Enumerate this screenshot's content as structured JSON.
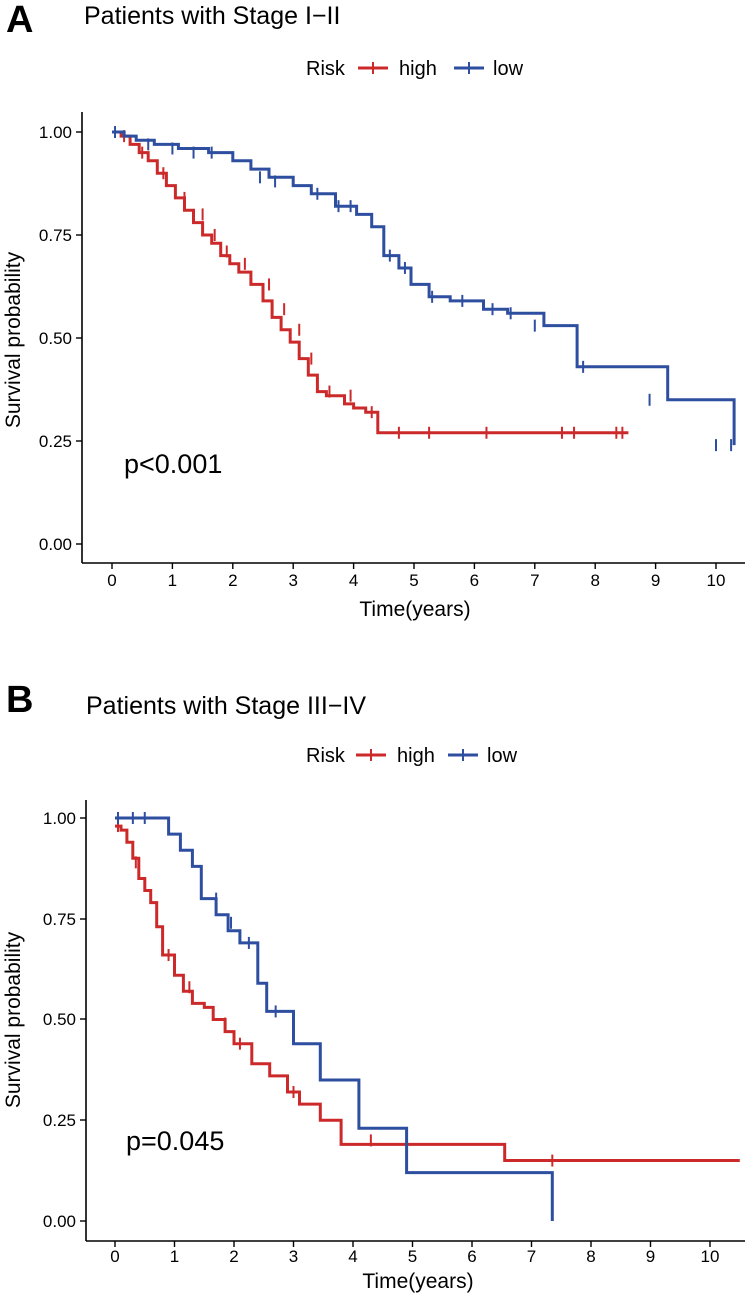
{
  "chart_data": [
    {
      "panel_label": "A",
      "type": "line",
      "title": "Patients with Stage I−II",
      "xlabel": "Time(years)",
      "ylabel": "Survival probability",
      "xlim": [
        0,
        10.5
      ],
      "ylim": [
        0,
        1.0
      ],
      "xticks": [
        0,
        1,
        2,
        3,
        4,
        5,
        6,
        7,
        8,
        9,
        10
      ],
      "yticks": [
        "0.00",
        "0.25",
        "0.50",
        "0.75",
        "1.00"
      ],
      "legend": {
        "title": "Risk",
        "position": "top",
        "entries": [
          "high",
          "low"
        ]
      },
      "annotation": "p<0.001",
      "grid": false,
      "series": [
        {
          "name": "high",
          "color": "#cc2a2a",
          "x": [
            0,
            0.15,
            0.3,
            0.45,
            0.6,
            0.75,
            0.9,
            1.05,
            1.2,
            1.35,
            1.5,
            1.65,
            1.8,
            1.95,
            2.1,
            2.3,
            2.5,
            2.65,
            2.8,
            2.95,
            3.1,
            3.25,
            3.4,
            3.55,
            3.7,
            3.85,
            4.0,
            4.2,
            4.4,
            8.55
          ],
          "y": [
            1.0,
            0.99,
            0.97,
            0.95,
            0.93,
            0.9,
            0.87,
            0.84,
            0.81,
            0.78,
            0.75,
            0.73,
            0.7,
            0.68,
            0.66,
            0.63,
            0.59,
            0.55,
            0.52,
            0.49,
            0.45,
            0.41,
            0.37,
            0.36,
            0.36,
            0.34,
            0.33,
            0.32,
            0.27,
            0.27
          ],
          "censored": [
            [
              0.2,
              0.99
            ],
            [
              0.5,
              0.95
            ],
            [
              0.85,
              0.9
            ],
            [
              1.2,
              0.84
            ],
            [
              1.5,
              0.8
            ],
            [
              1.7,
              0.75
            ],
            [
              1.9,
              0.71
            ],
            [
              2.2,
              0.68
            ],
            [
              2.6,
              0.63
            ],
            [
              2.85,
              0.57
            ],
            [
              3.1,
              0.52
            ],
            [
              3.3,
              0.45
            ],
            [
              3.6,
              0.37
            ],
            [
              3.95,
              0.36
            ],
            [
              4.3,
              0.32
            ],
            [
              4.75,
              0.27
            ],
            [
              5.25,
              0.27
            ],
            [
              6.2,
              0.27
            ],
            [
              7.45,
              0.27
            ],
            [
              7.65,
              0.27
            ],
            [
              8.35,
              0.27
            ],
            [
              8.45,
              0.27
            ]
          ]
        },
        {
          "name": "low",
          "color": "#2e4ea0",
          "x": [
            0,
            0.2,
            0.4,
            0.7,
            1.1,
            1.6,
            2.0,
            2.3,
            2.6,
            3.0,
            3.3,
            3.7,
            4.05,
            4.3,
            4.5,
            4.75,
            4.95,
            5.25,
            5.6,
            6.15,
            6.55,
            7.15,
            7.7,
            8.45,
            8.65,
            9.2,
            10.3
          ],
          "y": [
            1.0,
            0.99,
            0.98,
            0.97,
            0.96,
            0.95,
            0.93,
            0.91,
            0.89,
            0.87,
            0.85,
            0.82,
            0.8,
            0.77,
            0.7,
            0.67,
            0.63,
            0.6,
            0.59,
            0.57,
            0.56,
            0.53,
            0.43,
            0.43,
            0.43,
            0.35,
            0.24
          ],
          "censored": [
            [
              0.05,
              1.0
            ],
            [
              0.6,
              0.97
            ],
            [
              1.0,
              0.96
            ],
            [
              1.35,
              0.95
            ],
            [
              1.65,
              0.95
            ],
            [
              2.45,
              0.89
            ],
            [
              2.7,
              0.88
            ],
            [
              3.4,
              0.85
            ],
            [
              3.75,
              0.82
            ],
            [
              3.95,
              0.82
            ],
            [
              4.6,
              0.7
            ],
            [
              4.85,
              0.67
            ],
            [
              5.3,
              0.6
            ],
            [
              5.8,
              0.59
            ],
            [
              6.3,
              0.57
            ],
            [
              6.6,
              0.56
            ],
            [
              7.0,
              0.53
            ],
            [
              7.8,
              0.43
            ],
            [
              8.9,
              0.35
            ],
            [
              10.0,
              0.24
            ],
            [
              10.25,
              0.24
            ]
          ]
        }
      ]
    },
    {
      "panel_label": "B",
      "type": "line",
      "title": "Patients with Stage III−IV",
      "xlabel": "Time(years)",
      "ylabel": "Survival probability",
      "xlim": [
        0,
        10.5
      ],
      "ylim": [
        0,
        1.0
      ],
      "xticks": [
        0,
        1,
        2,
        3,
        4,
        5,
        6,
        7,
        8,
        9,
        10
      ],
      "yticks": [
        "0.00",
        "0.25",
        "0.50",
        "0.75",
        "1.00"
      ],
      "legend": {
        "title": "Risk",
        "position": "top",
        "entries": [
          "high",
          "low"
        ]
      },
      "annotation": "p=0.045",
      "grid": false,
      "series": [
        {
          "name": "high",
          "color": "#cc2a2a",
          "x": [
            0,
            0.1,
            0.2,
            0.3,
            0.4,
            0.5,
            0.6,
            0.7,
            0.8,
            1.0,
            1.15,
            1.3,
            1.5,
            1.65,
            1.85,
            2.0,
            2.3,
            2.6,
            2.9,
            3.1,
            3.45,
            3.8,
            4.1,
            4.9,
            6.55,
            10.5
          ],
          "y": [
            0.98,
            0.97,
            0.94,
            0.9,
            0.85,
            0.82,
            0.79,
            0.73,
            0.66,
            0.61,
            0.57,
            0.54,
            0.53,
            0.5,
            0.47,
            0.44,
            0.39,
            0.36,
            0.32,
            0.29,
            0.25,
            0.19,
            0.19,
            0.19,
            0.15,
            0.15
          ],
          "censored": [
            [
              0.05,
              0.98
            ],
            [
              0.35,
              0.89
            ],
            [
              0.9,
              0.66
            ],
            [
              1.25,
              0.58
            ],
            [
              1.85,
              0.49
            ],
            [
              2.1,
              0.44
            ],
            [
              3.0,
              0.32
            ],
            [
              4.3,
              0.2
            ],
            [
              7.35,
              0.15
            ]
          ]
        },
        {
          "name": "low",
          "color": "#2e4ea0",
          "x": [
            0,
            0.8,
            0.9,
            1.1,
            1.3,
            1.45,
            1.7,
            1.9,
            2.1,
            2.4,
            2.55,
            3.0,
            3.45,
            4.1,
            4.9,
            7.35
          ],
          "y": [
            1.0,
            1.0,
            0.96,
            0.92,
            0.88,
            0.8,
            0.76,
            0.72,
            0.69,
            0.59,
            0.52,
            0.44,
            0.35,
            0.23,
            0.12,
            0.0
          ],
          "censored": [
            [
              0.05,
              1.0
            ],
            [
              0.3,
              1.0
            ],
            [
              0.5,
              1.0
            ],
            [
              1.3,
              0.9
            ],
            [
              1.7,
              0.8
            ],
            [
              1.95,
              0.74
            ],
            [
              2.25,
              0.69
            ],
            [
              2.7,
              0.52
            ]
          ]
        }
      ]
    }
  ]
}
